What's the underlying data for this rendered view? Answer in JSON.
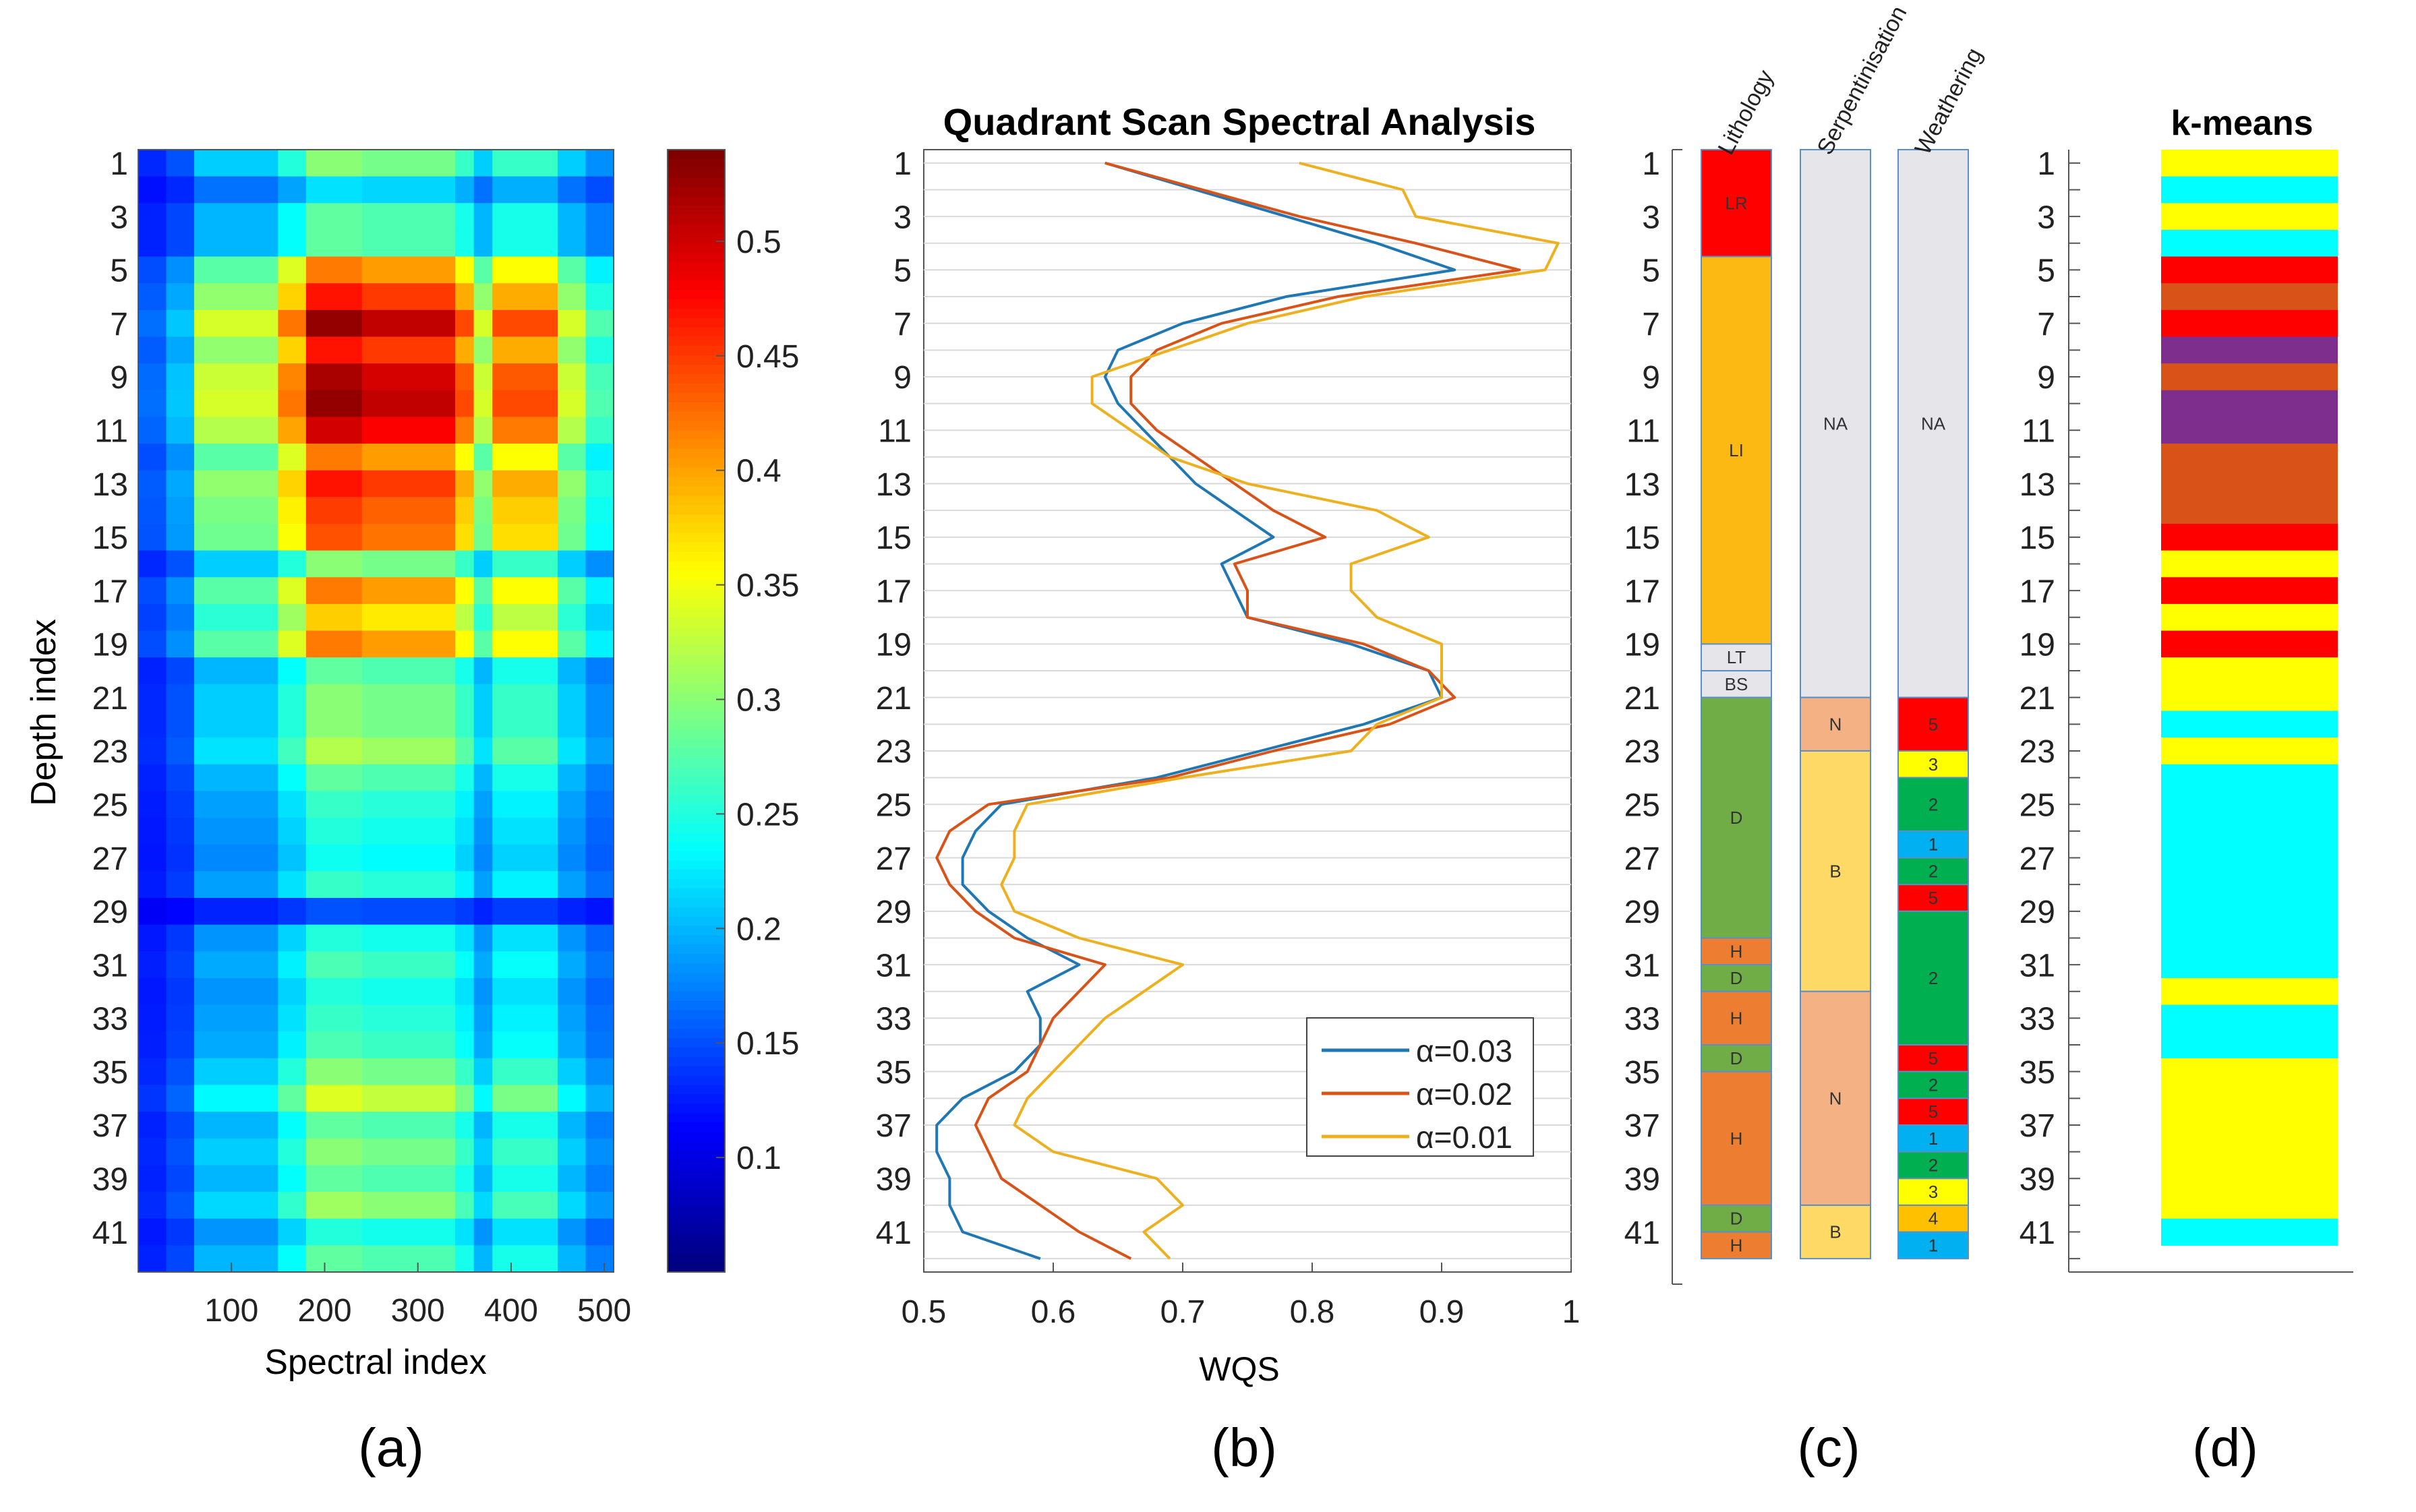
{
  "figure": {
    "panel_labels": [
      "(a)",
      "(b)",
      "(c)",
      "(d)"
    ]
  },
  "chart_data": [
    {
      "type": "heatmap",
      "panel": "(a)",
      "title": "",
      "xlabel": "Spectral index",
      "ylabel": "Depth index",
      "xlim": [
        1,
        510
      ],
      "ylim": [
        1,
        42
      ],
      "x_ticks": [
        100,
        200,
        300,
        400,
        500
      ],
      "y_ticks": [
        1,
        3,
        5,
        7,
        9,
        11,
        13,
        15,
        17,
        19,
        21,
        23,
        25,
        27,
        29,
        31,
        33,
        35,
        37,
        39,
        41
      ],
      "n_rows": 42,
      "colormap": "jet",
      "colorbar": {
        "range": [
          0.05,
          0.54
        ],
        "ticks": [
          0.1,
          0.15,
          0.2,
          0.25,
          0.3,
          0.35,
          0.4,
          0.45,
          0.5
        ]
      },
      "x_bands": [
        {
          "from": 0,
          "to": 30,
          "w": 0.15
        },
        {
          "from": 30,
          "to": 60,
          "w": 0.25
        },
        {
          "from": 60,
          "to": 150,
          "w": 0.55
        },
        {
          "from": 150,
          "to": 180,
          "w": 0.75
        },
        {
          "from": 180,
          "to": 240,
          "w": 1.0
        },
        {
          "from": 240,
          "to": 340,
          "w": 0.95
        },
        {
          "from": 340,
          "to": 360,
          "w": 0.8
        },
        {
          "from": 360,
          "to": 380,
          "w": 0.55
        },
        {
          "from": 380,
          "to": 450,
          "w": 0.8
        },
        {
          "from": 450,
          "to": 480,
          "w": 0.55
        },
        {
          "from": 480,
          "to": 510,
          "w": 0.4
        }
      ],
      "row_peak_values": [
        0.3,
        0.22,
        0.28,
        0.28,
        0.42,
        0.47,
        0.53,
        0.47,
        0.52,
        0.53,
        0.5,
        0.42,
        0.47,
        0.45,
        0.44,
        0.3,
        0.42,
        0.38,
        0.42,
        0.28,
        0.3,
        0.3,
        0.32,
        0.28,
        0.26,
        0.25,
        0.24,
        0.26,
        0.15,
        0.25,
        0.27,
        0.25,
        0.26,
        0.27,
        0.3,
        0.34,
        0.28,
        0.3,
        0.28,
        0.31,
        0.25,
        0.28
      ]
    },
    {
      "type": "line",
      "panel": "(b)",
      "title": "Quadrant Scan Spectral Analysis",
      "xlabel": "WQS",
      "ylabel": "",
      "xlim": [
        0.5,
        1.0
      ],
      "ylim": [
        1,
        42
      ],
      "x_ticks": [
        0.5,
        0.6,
        0.7,
        0.8,
        0.9,
        1
      ],
      "x_tick_labels": [
        "0.5",
        "0.6",
        "0.7",
        "0.8",
        "0.9",
        "1"
      ],
      "y_ticks": [
        1,
        3,
        5,
        7,
        9,
        11,
        13,
        15,
        17,
        19,
        21,
        23,
        25,
        27,
        29,
        31,
        33,
        35,
        37,
        39,
        41
      ],
      "grid": true,
      "legend": "bottom-right",
      "series": [
        {
          "name": "α=0.03",
          "color": "#1f77b4",
          "depth": [
            1,
            3,
            4,
            5,
            6,
            7,
            8,
            9,
            10,
            11,
            12,
            13,
            14,
            15,
            16,
            17,
            18,
            19,
            20,
            21,
            22,
            23,
            24,
            25,
            26,
            27,
            28,
            29,
            30,
            31,
            32,
            33,
            34,
            35,
            36,
            37,
            38,
            39,
            40,
            41,
            42
          ],
          "values": [
            0.64,
            0.78,
            0.85,
            0.91,
            0.78,
            0.7,
            0.65,
            0.64,
            0.65,
            0.67,
            0.69,
            0.71,
            0.74,
            0.77,
            0.73,
            0.74,
            0.75,
            0.83,
            0.89,
            0.9,
            0.84,
            0.76,
            0.68,
            0.56,
            0.54,
            0.53,
            0.53,
            0.55,
            0.58,
            0.62,
            0.58,
            0.59,
            0.59,
            0.57,
            0.53,
            0.51,
            0.51,
            0.52,
            0.52,
            0.53,
            0.59
          ]
        },
        {
          "name": "α=0.02",
          "color": "#d95319",
          "depth": [
            1,
            3,
            4,
            5,
            6,
            7,
            8,
            9,
            10,
            11,
            12,
            13,
            14,
            15,
            16,
            17,
            18,
            19,
            20,
            21,
            22,
            23,
            24,
            25,
            26,
            27,
            28,
            29,
            30,
            31,
            32,
            33,
            34,
            35,
            36,
            37,
            38,
            39,
            40,
            41,
            42
          ],
          "values": [
            0.64,
            0.79,
            0.88,
            0.96,
            0.82,
            0.73,
            0.68,
            0.66,
            0.66,
            0.68,
            0.71,
            0.74,
            0.77,
            0.81,
            0.74,
            0.75,
            0.75,
            0.84,
            0.89,
            0.91,
            0.86,
            0.77,
            0.69,
            0.55,
            0.52,
            0.51,
            0.52,
            0.54,
            0.57,
            0.64,
            0.62,
            0.6,
            0.59,
            0.58,
            0.55,
            0.54,
            0.55,
            0.56,
            0.59,
            0.62,
            0.66
          ]
        },
        {
          "name": "α=0.01",
          "color": "#edb120",
          "depth": [
            1,
            2,
            3,
            4,
            5,
            6,
            7,
            8,
            9,
            10,
            11,
            12,
            13,
            14,
            15,
            16,
            17,
            18,
            19,
            20,
            21,
            22,
            23,
            24,
            25,
            26,
            27,
            28,
            29,
            30,
            31,
            32,
            33,
            34,
            35,
            36,
            37,
            38,
            39,
            40,
            41,
            42
          ],
          "values": [
            0.79,
            0.87,
            0.88,
            0.99,
            0.98,
            0.84,
            0.75,
            0.69,
            0.63,
            0.63,
            0.66,
            0.69,
            0.75,
            0.85,
            0.89,
            0.83,
            0.83,
            0.85,
            0.9,
            0.9,
            0.9,
            0.85,
            0.83,
            0.7,
            0.58,
            0.57,
            0.57,
            0.56,
            0.57,
            0.62,
            0.7,
            0.67,
            0.64,
            0.62,
            0.6,
            0.58,
            0.57,
            0.6,
            0.68,
            0.7,
            0.67,
            0.69
          ]
        }
      ]
    },
    {
      "type": "table",
      "panel": "(c)",
      "title": "",
      "ylim": [
        1,
        42
      ],
      "y_ticks": [
        1,
        3,
        5,
        7,
        9,
        11,
        13,
        15,
        17,
        19,
        21,
        23,
        25,
        27,
        29,
        31,
        33,
        35,
        37,
        39,
        41
      ],
      "columns": [
        {
          "name": "Lithology",
          "segments": [
            {
              "from": 0.5,
              "to": 4.5,
              "label": "LR",
              "color": "#ff0000"
            },
            {
              "from": 4.5,
              "to": 19.0,
              "label": "LI",
              "color": "#fdb913"
            },
            {
              "from": 19.0,
              "to": 20.0,
              "label": "LT",
              "color": "#e6e6ea"
            },
            {
              "from": 20.0,
              "to": 21.0,
              "label": "BS",
              "color": "#e6e6ea"
            },
            {
              "from": 21.0,
              "to": 30.0,
              "label": "D",
              "color": "#70ad47"
            },
            {
              "from": 30.0,
              "to": 31.0,
              "label": "H",
              "color": "#ed7d31"
            },
            {
              "from": 31.0,
              "to": 32.0,
              "label": "D",
              "color": "#70ad47"
            },
            {
              "from": 32.0,
              "to": 34.0,
              "label": "H",
              "color": "#ed7d31"
            },
            {
              "from": 34.0,
              "to": 35.0,
              "label": "D",
              "color": "#70ad47"
            },
            {
              "from": 35.0,
              "to": 40.0,
              "label": "H",
              "color": "#ed7d31"
            },
            {
              "from": 40.0,
              "to": 41.0,
              "label": "D",
              "color": "#70ad47"
            },
            {
              "from": 41.0,
              "to": 42.0,
              "label": "H",
              "color": "#ed7d31"
            }
          ]
        },
        {
          "name": "Serpentinisation",
          "segments": [
            {
              "from": 0.5,
              "to": 21.0,
              "label": "NA",
              "color": "#e6e6ea"
            },
            {
              "from": 21.0,
              "to": 23.0,
              "label": "N",
              "color": "#f4b183"
            },
            {
              "from": 23.0,
              "to": 32.0,
              "label": "B",
              "color": "#ffd966"
            },
            {
              "from": 32.0,
              "to": 40.0,
              "label": "N",
              "color": "#f4b183"
            },
            {
              "from": 40.0,
              "to": 42.0,
              "label": "B",
              "color": "#ffd966"
            }
          ]
        },
        {
          "name": "Weathering",
          "segments": [
            {
              "from": 0.5,
              "to": 21.0,
              "label": "NA",
              "color": "#e6e6ea"
            },
            {
              "from": 21.0,
              "to": 23.0,
              "label": "5",
              "color": "#ff0000"
            },
            {
              "from": 23.0,
              "to": 24.0,
              "label": "3",
              "color": "#ffff00"
            },
            {
              "from": 24.0,
              "to": 26.0,
              "label": "2",
              "color": "#00b050"
            },
            {
              "from": 26.0,
              "to": 27.0,
              "label": "1",
              "color": "#00b0f0"
            },
            {
              "from": 27.0,
              "to": 28.0,
              "label": "2",
              "color": "#00b050"
            },
            {
              "from": 28.0,
              "to": 29.0,
              "label": "5",
              "color": "#ff0000"
            },
            {
              "from": 29.0,
              "to": 34.0,
              "label": "2",
              "color": "#00b050"
            },
            {
              "from": 34.0,
              "to": 35.0,
              "label": "5",
              "color": "#ff0000"
            },
            {
              "from": 35.0,
              "to": 36.0,
              "label": "2",
              "color": "#00b050"
            },
            {
              "from": 36.0,
              "to": 37.0,
              "label": "5",
              "color": "#ff0000"
            },
            {
              "from": 37.0,
              "to": 38.0,
              "label": "1",
              "color": "#00b0f0"
            },
            {
              "from": 38.0,
              "to": 39.0,
              "label": "2",
              "color": "#00b050"
            },
            {
              "from": 39.0,
              "to": 40.0,
              "label": "3",
              "color": "#ffff00"
            },
            {
              "from": 40.0,
              "to": 41.0,
              "label": "4",
              "color": "#ffc000"
            },
            {
              "from": 41.0,
              "to": 42.0,
              "label": "1",
              "color": "#00b0f0"
            }
          ]
        }
      ]
    },
    {
      "type": "table",
      "panel": "(d)",
      "title": "k-means",
      "ylim": [
        1,
        42
      ],
      "y_ticks": [
        1,
        3,
        5,
        7,
        9,
        11,
        13,
        15,
        17,
        19,
        21,
        23,
        25,
        27,
        29,
        31,
        33,
        35,
        37,
        39,
        41
      ],
      "cluster_colors": [
        "#ffff00",
        "#00ffff",
        "#ff0000",
        "#d95319",
        "#7e2f8e"
      ],
      "row_clusters": [
        0,
        1,
        0,
        1,
        2,
        3,
        2,
        4,
        3,
        4,
        4,
        3,
        3,
        3,
        2,
        0,
        2,
        0,
        2,
        0,
        0,
        1,
        0,
        1,
        1,
        1,
        1,
        1,
        1,
        1,
        1,
        0,
        1,
        1,
        0,
        0,
        0,
        0,
        0,
        0,
        1
      ]
    }
  ]
}
